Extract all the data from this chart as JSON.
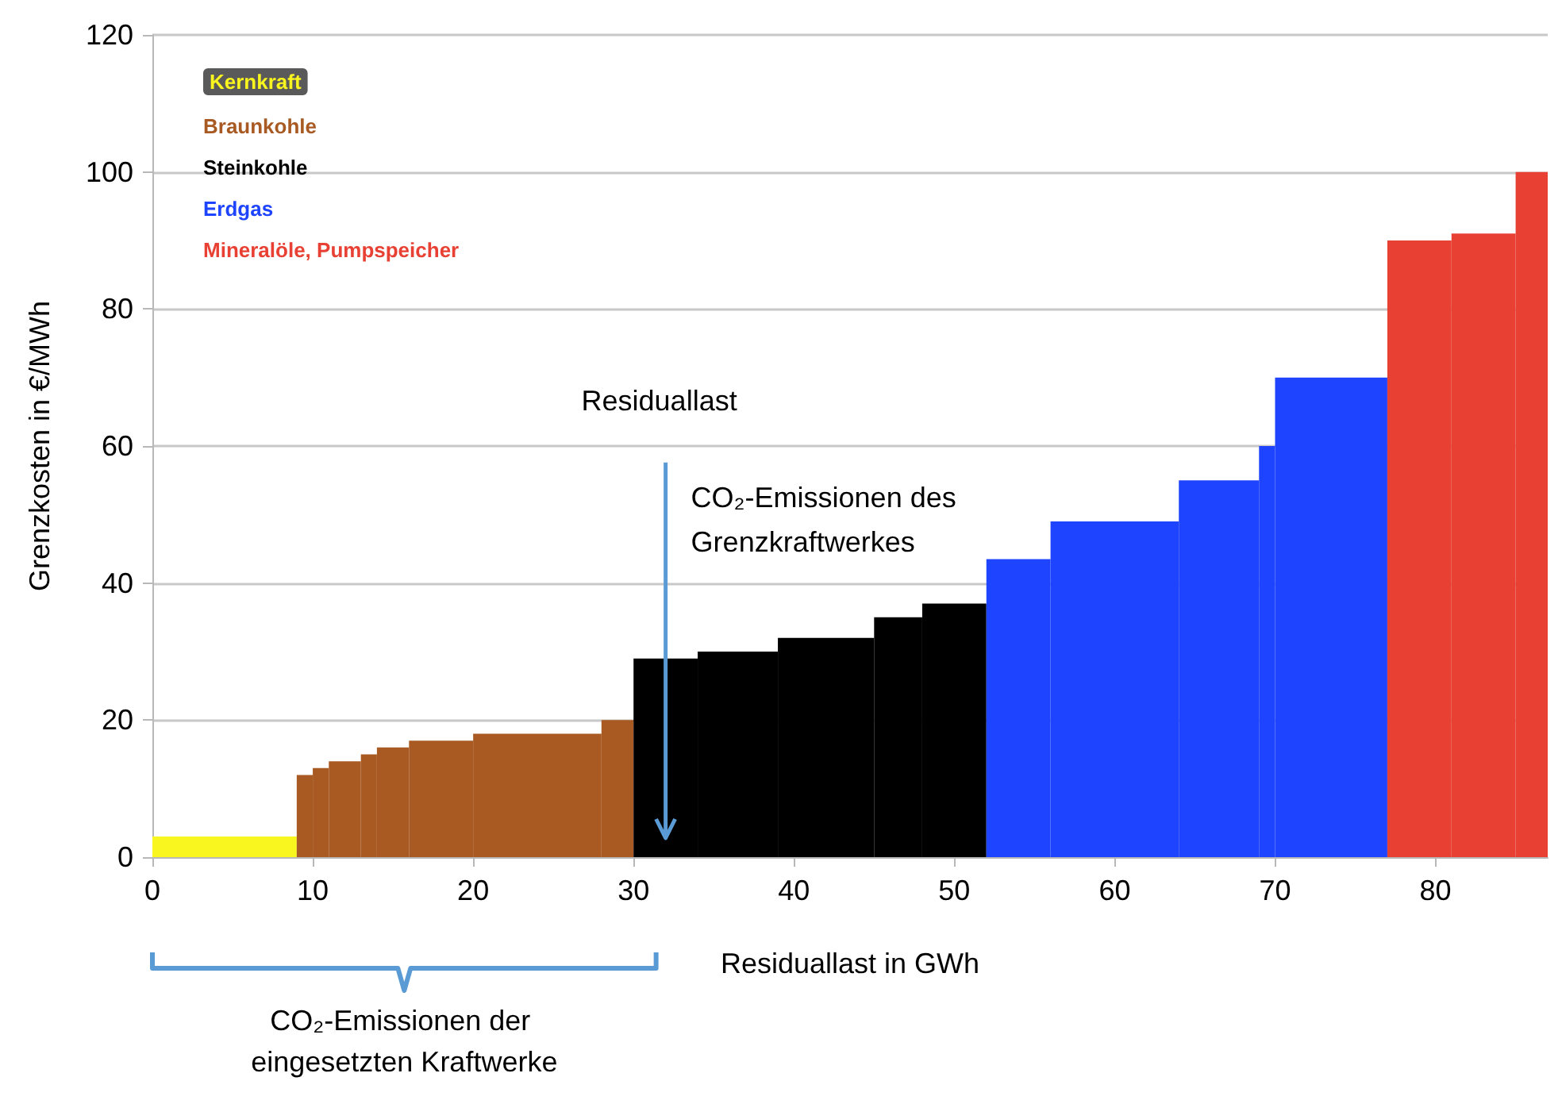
{
  "chart_data": {
    "type": "histogram",
    "xlabel": "Residuallast in GWh",
    "ylabel": "Grenzkosten in €/MWh",
    "xlim": [
      0,
      87
    ],
    "xticks": [
      0,
      10,
      20,
      30,
      40,
      50,
      60,
      70,
      80
    ],
    "ylim": [
      0,
      120
    ],
    "yticks": [
      0,
      20,
      40,
      60,
      80,
      100,
      120
    ],
    "grid": "y",
    "legend": "top left",
    "bins": [
      0,
      9,
      10,
      11,
      13,
      14,
      16,
      20,
      28,
      30,
      34,
      39,
      45,
      48,
      52,
      56,
      64,
      69,
      70,
      77,
      81,
      85,
      87
    ],
    "series": [
      {
        "name": "Kernkraft",
        "color": "#f9f51e",
        "values": [
          3,
          null,
          null,
          null,
          null,
          null,
          null,
          null,
          null,
          null,
          null,
          null,
          null,
          null,
          null,
          null,
          null,
          null,
          null,
          null,
          null,
          null
        ]
      },
      {
        "name": "Braunkohle",
        "color": "#a85a22",
        "values": [
          null,
          12,
          13,
          14,
          15,
          16,
          17,
          18,
          20,
          null,
          null,
          null,
          null,
          null,
          null,
          null,
          null,
          null,
          null,
          null,
          null,
          null
        ]
      },
      {
        "name": "Steinkohle",
        "color": "#000000",
        "values": [
          null,
          null,
          null,
          null,
          null,
          null,
          null,
          null,
          null,
          29,
          30,
          32,
          35,
          37,
          null,
          null,
          null,
          null,
          null,
          null,
          null,
          null
        ]
      },
      {
        "name": "Erdgas",
        "color": "#1e44ff",
        "values": [
          null,
          null,
          null,
          null,
          null,
          null,
          null,
          null,
          null,
          null,
          null,
          null,
          null,
          null,
          43.5,
          49,
          55,
          60,
          70,
          null,
          null,
          null
        ]
      },
      {
        "name": "Mineralöle, Pumpspeicher",
        "color": "#e84033",
        "values": [
          null,
          null,
          null,
          null,
          null,
          null,
          null,
          null,
          null,
          null,
          null,
          null,
          null,
          null,
          null,
          null,
          null,
          null,
          null,
          90,
          91,
          100
        ]
      }
    ],
    "ref_lines": [
      {
        "axis": "x",
        "value": 32,
        "label": "Residuallast",
        "color": "#5b9bd5"
      }
    ],
    "annotations": [
      "CO₂-Emissionen des Grenzkraftwerkes",
      "CO₂-Emissionen der eingesetzten Kraftwerke"
    ]
  }
}
